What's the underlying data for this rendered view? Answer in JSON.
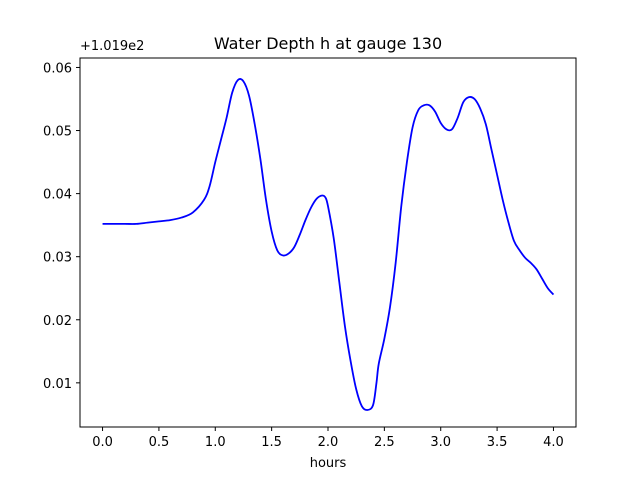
{
  "chart_data": {
    "type": "line",
    "title": "Water Depth h at gauge 130",
    "xlabel": "hours",
    "ylabel": "",
    "y_offset_label": "+1.019e2",
    "xlim": [
      -0.2,
      4.2
    ],
    "ylim": [
      0.003,
      0.0615
    ],
    "x_ticks": [
      0.0,
      0.5,
      1.0,
      1.5,
      2.0,
      2.5,
      3.0,
      3.5,
      4.0
    ],
    "x_tick_labels": [
      "0.0",
      "0.5",
      "1.0",
      "1.5",
      "2.0",
      "2.5",
      "3.0",
      "3.5",
      "4.0"
    ],
    "y_ticks": [
      0.01,
      0.02,
      0.03,
      0.04,
      0.05,
      0.06
    ],
    "y_tick_labels": [
      "0.01",
      "0.02",
      "0.03",
      "0.04",
      "0.05",
      "0.06"
    ],
    "grid": false,
    "legend": "none",
    "series": [
      {
        "color": "#0000ff",
        "x": [
          0.0,
          0.1,
          0.2,
          0.3,
          0.4,
          0.5,
          0.6,
          0.7,
          0.8,
          0.9,
          0.95,
          1.0,
          1.05,
          1.1,
          1.15,
          1.2,
          1.25,
          1.3,
          1.35,
          1.4,
          1.45,
          1.5,
          1.55,
          1.6,
          1.65,
          1.7,
          1.75,
          1.8,
          1.85,
          1.9,
          1.95,
          1.98,
          2.0,
          2.05,
          2.1,
          2.15,
          2.2,
          2.25,
          2.3,
          2.35,
          2.4,
          2.43,
          2.45,
          2.5,
          2.55,
          2.6,
          2.65,
          2.7,
          2.75,
          2.8,
          2.85,
          2.9,
          2.95,
          3.0,
          3.05,
          3.1,
          3.15,
          3.2,
          3.25,
          3.3,
          3.35,
          3.4,
          3.45,
          3.5,
          3.55,
          3.6,
          3.65,
          3.7,
          3.75,
          3.8,
          3.85,
          3.9,
          3.95,
          4.0
        ],
        "y": [
          0.0352,
          0.0352,
          0.0352,
          0.0352,
          0.0354,
          0.0356,
          0.0358,
          0.0362,
          0.037,
          0.039,
          0.0412,
          0.045,
          0.0485,
          0.052,
          0.056,
          0.058,
          0.0578,
          0.0555,
          0.051,
          0.0455,
          0.039,
          0.034,
          0.031,
          0.0302,
          0.0305,
          0.0315,
          0.0335,
          0.0358,
          0.0378,
          0.0392,
          0.0397,
          0.0393,
          0.038,
          0.033,
          0.026,
          0.019,
          0.0135,
          0.009,
          0.0063,
          0.0057,
          0.0065,
          0.01,
          0.013,
          0.017,
          0.022,
          0.029,
          0.038,
          0.045,
          0.0505,
          0.0532,
          0.054,
          0.054,
          0.053,
          0.0512,
          0.0502,
          0.0502,
          0.052,
          0.0545,
          0.0553,
          0.055,
          0.0535,
          0.051,
          0.047,
          0.043,
          0.039,
          0.0355,
          0.0325,
          0.031,
          0.0298,
          0.029,
          0.028,
          0.0265,
          0.025,
          0.024
        ]
      }
    ]
  }
}
